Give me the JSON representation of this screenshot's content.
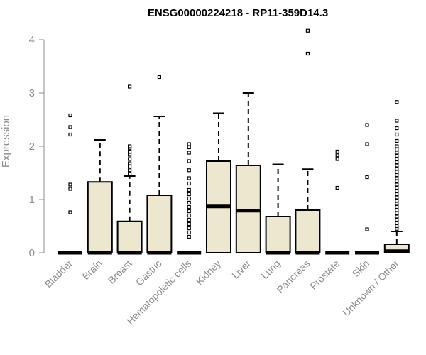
{
  "chart_data": {
    "type": "box",
    "title": "ENSG00000224218 - RP11-359D14.3",
    "xlabel": "",
    "ylabel": "Expression",
    "ylim": [
      0,
      4.2
    ],
    "yticks": [
      0,
      1,
      2,
      3,
      4
    ],
    "grid": false,
    "colors": {
      "box_fill": "#ede7cf",
      "box_stroke": "#000000",
      "axis": "#8c8c8c"
    },
    "categories": [
      "Bladder",
      "Brain",
      "Breast",
      "Gastric",
      "Hematopoietic cells",
      "Kidney",
      "Liver",
      "Lung",
      "Pancreas",
      "Prostate",
      "Skin",
      "Unknown / Other"
    ],
    "boxes": [
      {
        "q1": 0,
        "median": 0,
        "q3": 0,
        "whisker_low": 0,
        "whisker_high": 0,
        "outliers": [
          0.76,
          1.2,
          1.28,
          2.22,
          2.36,
          2.58
        ]
      },
      {
        "q1": 0,
        "median": 0,
        "q3": 1.33,
        "whisker_low": 0,
        "whisker_high": 2.12,
        "outliers": []
      },
      {
        "q1": 0,
        "median": 0,
        "q3": 0.59,
        "whisker_low": 0,
        "whisker_high": 1.44,
        "outliers": [
          1.48,
          1.55,
          1.62,
          1.68,
          1.76,
          1.84,
          1.9,
          1.97,
          2.0,
          3.12
        ]
      },
      {
        "q1": 0,
        "median": 0,
        "q3": 1.08,
        "whisker_low": 0,
        "whisker_high": 2.56,
        "outliers": [
          3.3
        ]
      },
      {
        "q1": 0,
        "median": 0,
        "q3": 0,
        "whisker_low": 0,
        "whisker_high": 0,
        "outliers": [
          0.3,
          0.38,
          0.46,
          0.54,
          0.62,
          0.7,
          0.78,
          0.86,
          0.94,
          1.02,
          1.1,
          1.18,
          1.3,
          1.4,
          1.55,
          1.72,
          1.88,
          1.98,
          2.04
        ]
      },
      {
        "q1": 0,
        "median": 0.87,
        "q3": 1.72,
        "whisker_low": 0,
        "whisker_high": 2.62,
        "outliers": []
      },
      {
        "q1": 0,
        "median": 0.79,
        "q3": 1.64,
        "whisker_low": 0,
        "whisker_high": 3.0,
        "outliers": []
      },
      {
        "q1": 0,
        "median": 0,
        "q3": 0.68,
        "whisker_low": 0,
        "whisker_high": 1.66,
        "outliers": []
      },
      {
        "q1": 0,
        "median": 0,
        "q3": 0.8,
        "whisker_low": 0,
        "whisker_high": 1.57,
        "outliers": [
          3.74,
          4.17
        ]
      },
      {
        "q1": 0,
        "median": 0,
        "q3": 0,
        "whisker_low": 0,
        "whisker_high": 0,
        "outliers": [
          1.22,
          1.76,
          1.83,
          1.9
        ]
      },
      {
        "q1": 0,
        "median": 0,
        "q3": 0,
        "whisker_low": 0,
        "whisker_high": 0,
        "outliers": [
          0.44,
          1.42,
          2.04,
          2.4
        ]
      },
      {
        "q1": 0,
        "median": 0.03,
        "q3": 0.16,
        "whisker_low": 0,
        "whisker_high": 0.4,
        "outliers": [
          0.45,
          0.5,
          0.56,
          0.62,
          0.68,
          0.74,
          0.8,
          0.86,
          0.92,
          0.98,
          1.04,
          1.1,
          1.16,
          1.22,
          1.28,
          1.34,
          1.4,
          1.46,
          1.52,
          1.58,
          1.64,
          1.7,
          1.76,
          1.82,
          1.88,
          1.94,
          2.0,
          2.1,
          2.22,
          2.34,
          2.48,
          2.83
        ]
      }
    ]
  }
}
